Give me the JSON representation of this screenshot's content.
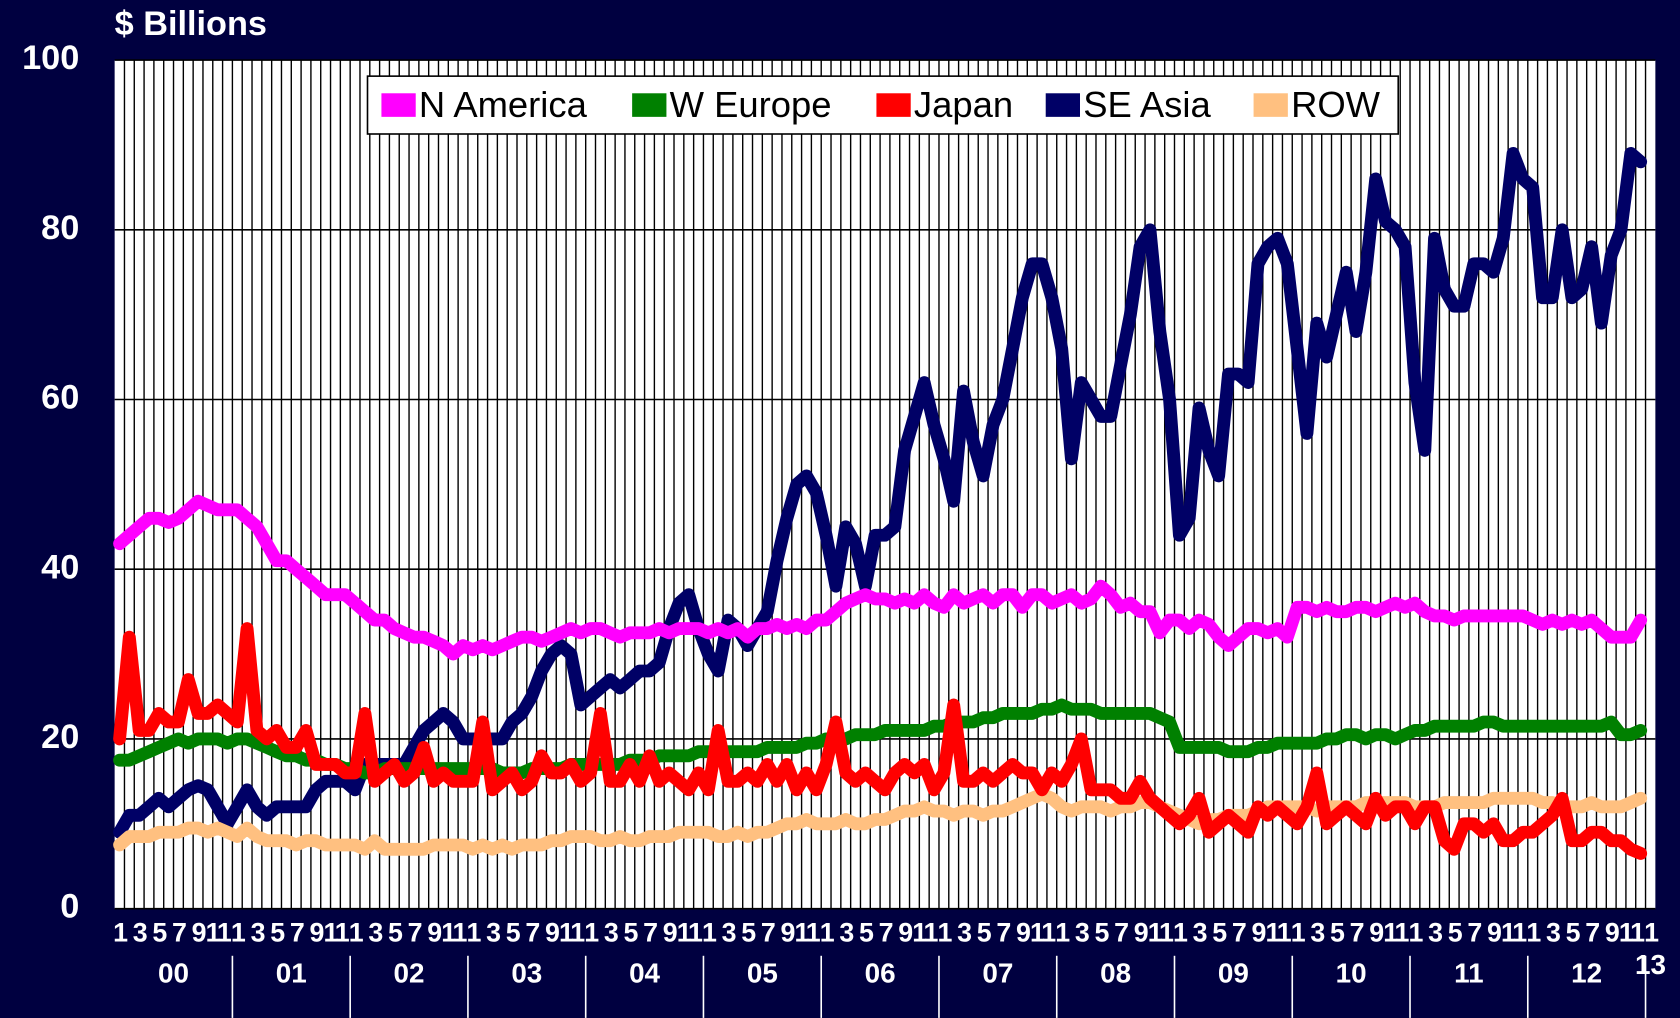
{
  "chart_data": {
    "type": "line",
    "title": "$ Billions",
    "categories": [
      "1",
      null,
      "3",
      null,
      "5",
      null,
      "7",
      null,
      "9",
      null,
      "11",
      null,
      "1",
      null,
      "3",
      null,
      "5",
      null,
      "7",
      null,
      "9",
      null,
      "11",
      null,
      "1",
      null,
      "3",
      null,
      "5",
      null,
      "7",
      null,
      "9",
      null,
      "11",
      null,
      "1",
      null,
      "3",
      null,
      "5",
      null,
      "7",
      null,
      "9",
      null,
      "11",
      null,
      "1",
      null,
      "3",
      null,
      "5",
      null,
      "7",
      null,
      "9",
      null,
      "11",
      null,
      "1",
      null,
      "3",
      null,
      "5",
      null,
      "7",
      null,
      "9",
      null,
      "11",
      null,
      "1",
      null,
      "3",
      null,
      "5",
      null,
      "7",
      null,
      "9",
      null,
      "11",
      null,
      "1",
      null,
      "3",
      null,
      "5",
      null,
      "7",
      null,
      "9",
      null,
      "11",
      null,
      "1",
      null,
      "3",
      null,
      "5",
      null,
      "7",
      null,
      "9",
      null,
      "11",
      null,
      "1",
      null,
      "3",
      null,
      "5",
      null,
      "7",
      null,
      "9",
      null,
      "11",
      null,
      "1",
      null,
      "3",
      null,
      "5",
      null,
      "7",
      null,
      "9",
      null,
      "11",
      null,
      "1",
      null,
      "3",
      null,
      "5",
      null,
      "7",
      null,
      "9",
      null,
      "11",
      null,
      "1",
      null,
      "3",
      null,
      "5",
      null,
      "7",
      null,
      "9",
      null,
      "11",
      null,
      "1"
    ],
    "year_labels": [
      "00",
      "01",
      "02",
      "03",
      "04",
      "05",
      "06",
      "07",
      "08",
      "09",
      "10",
      "11",
      "12",
      "13"
    ],
    "ylim": [
      0,
      100
    ],
    "yticks": [
      0,
      20,
      40,
      60,
      80,
      100
    ],
    "grid": true,
    "legend": "top",
    "series": [
      {
        "name": "N America",
        "color": "#ff00ff",
        "values": [
          43,
          44,
          45,
          46,
          46,
          45.5,
          46,
          47,
          48,
          47.5,
          47,
          47,
          47,
          46,
          45,
          43,
          41,
          41,
          40,
          39,
          38,
          37,
          37,
          37,
          36,
          35,
          34,
          34,
          33,
          32.5,
          32,
          32,
          31.5,
          31,
          30,
          31,
          30.5,
          31,
          30.5,
          31,
          31.5,
          32,
          32,
          31.5,
          32,
          32.5,
          33,
          32.5,
          33,
          33,
          32.5,
          32,
          32.5,
          32.5,
          32.5,
          33,
          32.5,
          33,
          33,
          33,
          32.5,
          33,
          32.5,
          33,
          32,
          33,
          33,
          33.5,
          33,
          33.5,
          33,
          34,
          34,
          35,
          36,
          36.5,
          37,
          36.5,
          36.5,
          36,
          36.5,
          36,
          37,
          36,
          35.5,
          37,
          36,
          36.5,
          37,
          36,
          37,
          37,
          35.5,
          37,
          37,
          36,
          36.5,
          37,
          36,
          36.5,
          38,
          37,
          35.5,
          36,
          35,
          35,
          32.5,
          34,
          34,
          33,
          34,
          33.5,
          32,
          31,
          32,
          33,
          33,
          32.5,
          33,
          32,
          35.5,
          35.5,
          35,
          35.5,
          35,
          35,
          35.5,
          35.5,
          35,
          35.5,
          36,
          35.5,
          36,
          35,
          34.5,
          34.5,
          34,
          34.5,
          34.5,
          34.5,
          34.5,
          34.5,
          34.5,
          34.5,
          34,
          33.5,
          34,
          33.5,
          34,
          33.5,
          34,
          33,
          32,
          32,
          32,
          34,
          null
        ]
      },
      {
        "name": "W Europe",
        "color": "#008000",
        "values": [
          17.5,
          17.5,
          18,
          18.5,
          19,
          19.5,
          20,
          19.5,
          20,
          20,
          20,
          19.5,
          20,
          20,
          19.5,
          19,
          18.5,
          18,
          18,
          17.5,
          17.5,
          17,
          17,
          16.5,
          16.5,
          16,
          16,
          16.5,
          16.5,
          16.5,
          16.5,
          16.5,
          16.5,
          16.5,
          16.5,
          16.5,
          16.5,
          16.5,
          16.5,
          16,
          16,
          16,
          16.5,
          16.5,
          16.5,
          16.5,
          17,
          17,
          17,
          17,
          17,
          17,
          17.5,
          17.5,
          17.5,
          18,
          18,
          18,
          18,
          18.5,
          18.5,
          18.5,
          18.5,
          18.5,
          18.5,
          18.5,
          19,
          19,
          19,
          19,
          19.5,
          19.5,
          20,
          20,
          20,
          20.5,
          20.5,
          20.5,
          21,
          21,
          21,
          21,
          21,
          21.5,
          21.5,
          22,
          22,
          22,
          22.5,
          22.5,
          23,
          23,
          23,
          23,
          23.5,
          23.5,
          24,
          23.5,
          23.5,
          23.5,
          23,
          23,
          23,
          23,
          23,
          23,
          22.5,
          22,
          19,
          19,
          19,
          19,
          19,
          18.5,
          18.5,
          18.5,
          19,
          19,
          19.5,
          19.5,
          19.5,
          19.5,
          19.5,
          20,
          20,
          20.5,
          20.5,
          20,
          20.5,
          20.5,
          20,
          20.5,
          21,
          21,
          21.5,
          21.5,
          21.5,
          21.5,
          21.5,
          22,
          22,
          21.5,
          21.5,
          21.5,
          21.5,
          21.5,
          21.5,
          21.5,
          21.5,
          21.5,
          21.5,
          21.5,
          22,
          20.5,
          20.5,
          21,
          null
        ]
      },
      {
        "name": "Japan",
        "color": "#ff0000",
        "values": [
          20,
          32,
          21,
          21,
          23,
          22,
          22,
          27,
          23,
          23,
          24,
          23,
          22,
          33,
          21,
          20,
          21,
          19,
          19,
          21,
          17,
          17,
          17,
          16,
          16,
          23,
          15,
          16,
          17,
          15,
          16,
          19,
          15,
          16,
          15,
          15,
          15,
          22,
          14,
          15,
          16,
          14,
          15,
          18,
          16,
          16,
          17,
          15,
          16,
          23,
          15,
          15,
          17,
          15,
          18,
          15,
          16,
          15,
          14,
          16,
          14,
          21,
          15,
          15,
          16,
          15,
          17,
          15,
          17,
          14,
          16,
          14,
          17,
          22,
          16,
          15,
          16,
          15,
          14,
          16,
          17,
          16,
          17,
          14,
          16,
          24,
          15,
          15,
          16,
          15,
          16,
          17,
          16,
          16,
          14,
          16,
          15,
          17,
          20,
          14,
          14,
          14,
          13,
          13,
          15,
          13,
          12,
          11,
          10,
          11,
          13,
          9,
          10,
          11,
          10,
          9,
          12,
          11,
          12,
          11,
          10,
          12,
          16,
          10,
          11,
          12,
          11,
          10,
          13,
          11,
          12,
          12,
          10,
          12,
          12,
          8,
          7,
          10,
          10,
          9,
          10,
          8,
          8,
          9,
          9,
          10,
          11,
          13,
          8,
          8,
          9,
          9,
          8,
          8,
          7,
          6.5,
          null
        ]
      },
      {
        "name": "SE Asia",
        "color": "#000066",
        "values": [
          9,
          11,
          11,
          12,
          13,
          12,
          13,
          14,
          14.5,
          14,
          12,
          10,
          12,
          14,
          12,
          11,
          12,
          12,
          12,
          12,
          14,
          15,
          15,
          15,
          14,
          17,
          17,
          17,
          17,
          17,
          19,
          21,
          22,
          23,
          22,
          20,
          20,
          20,
          20,
          20,
          22,
          23,
          25,
          28,
          30,
          31,
          30,
          24,
          25,
          26,
          27,
          26,
          27,
          28,
          28,
          29,
          33,
          36,
          37,
          33,
          30,
          28,
          34,
          33,
          31,
          33,
          35,
          41,
          46,
          50,
          51,
          49,
          44,
          38,
          45,
          43,
          38,
          44,
          44,
          45,
          54,
          58,
          62,
          57,
          53,
          48,
          61,
          55,
          51,
          57,
          60,
          66,
          72,
          76,
          76,
          72,
          66,
          53,
          62,
          60,
          58,
          58,
          64,
          70,
          78,
          80,
          68,
          60,
          44,
          46,
          59,
          54,
          51,
          63,
          63,
          62,
          76,
          78,
          79,
          76,
          66,
          56,
          69,
          65,
          70,
          75,
          68,
          75,
          86,
          81,
          80,
          78,
          62,
          54,
          79,
          73,
          71,
          71,
          76,
          76,
          75,
          79,
          89,
          86,
          85,
          72,
          72,
          80,
          72,
          73,
          78,
          69,
          77,
          80,
          89,
          88,
          null
        ]
      },
      {
        "name": "ROW",
        "color": "#ffc080",
        "values": [
          7.5,
          8.5,
          8.5,
          8.5,
          9,
          9,
          9,
          9.5,
          9.5,
          9,
          9.5,
          9,
          8.5,
          9.5,
          8.5,
          8,
          8,
          8,
          7.5,
          8,
          8,
          7.5,
          7.5,
          7.5,
          7.5,
          7,
          8,
          7,
          7,
          7,
          7,
          7,
          7.5,
          7.5,
          7.5,
          7.5,
          7,
          7.5,
          7,
          7.5,
          7,
          7.5,
          7.5,
          7.5,
          8,
          8,
          8.5,
          8.5,
          8.5,
          8,
          8,
          8.5,
          8,
          8,
          8.5,
          8.5,
          8.5,
          9,
          9,
          9,
          9,
          8.5,
          8.5,
          9,
          8.5,
          9,
          9,
          9.5,
          10,
          10,
          10.5,
          10,
          10,
          10,
          10.5,
          10,
          10,
          10.5,
          10.5,
          11,
          11.5,
          11.5,
          12,
          11.5,
          11.5,
          11,
          11.5,
          11.5,
          11,
          11.5,
          11.5,
          12,
          12.5,
          13,
          13.5,
          13,
          12,
          11.5,
          12,
          12,
          12,
          11.5,
          12,
          12,
          12.5,
          12.5,
          12,
          11.5,
          11,
          10.5,
          10,
          10.5,
          10.5,
          11,
          11,
          11,
          11.5,
          12,
          12,
          12,
          12,
          12,
          11.5,
          12,
          12,
          12,
          12,
          12.5,
          12.5,
          12.5,
          12.5,
          12.5,
          12,
          12,
          12,
          12.5,
          12.5,
          12.5,
          12.5,
          12.5,
          13,
          13,
          13,
          13,
          13,
          12.5,
          12.5,
          12,
          12,
          12,
          12.5,
          12,
          12,
          12,
          12.5,
          13,
          null
        ]
      }
    ]
  }
}
